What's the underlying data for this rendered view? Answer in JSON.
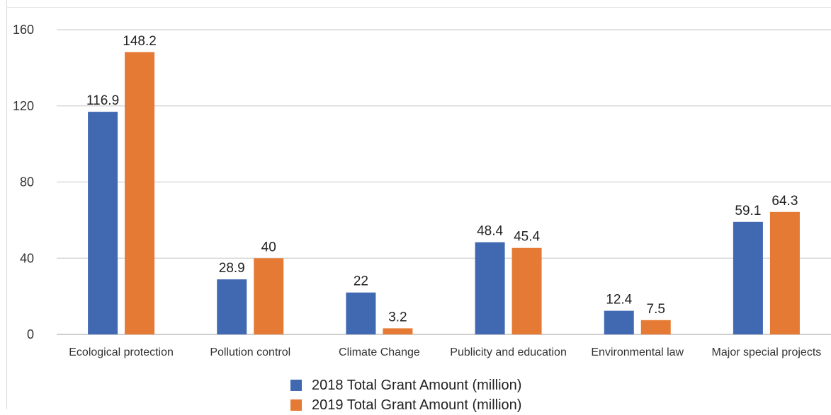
{
  "chart_data": {
    "type": "bar",
    "categories": [
      "Ecological protection",
      "Pollution control",
      "Climate Change",
      "Publicity and education",
      "Environmental law",
      "Major special projects"
    ],
    "series": [
      {
        "name": "2018 Total Grant Amount (million)",
        "values": [
          116.9,
          28.9,
          22,
          48.4,
          12.4,
          59.1
        ],
        "labels": [
          "116.9",
          "28.9",
          "22",
          "48.4",
          "12.4",
          "59.1"
        ],
        "color": "#4169b2"
      },
      {
        "name": "2019 Total Grant Amount (million)",
        "values": [
          148.2,
          40,
          3.2,
          45.4,
          7.5,
          64.3
        ],
        "labels": [
          "148.2",
          "40",
          "3.2",
          "45.4",
          "7.5",
          "64.3"
        ],
        "color": "#e57a34"
      }
    ],
    "ylim": [
      0,
      160
    ],
    "yticks": [
      "0",
      "40",
      "80",
      "120",
      "160"
    ],
    "grid": true,
    "legend_position": "bottom",
    "title": "",
    "xlabel": "",
    "ylabel": ""
  }
}
